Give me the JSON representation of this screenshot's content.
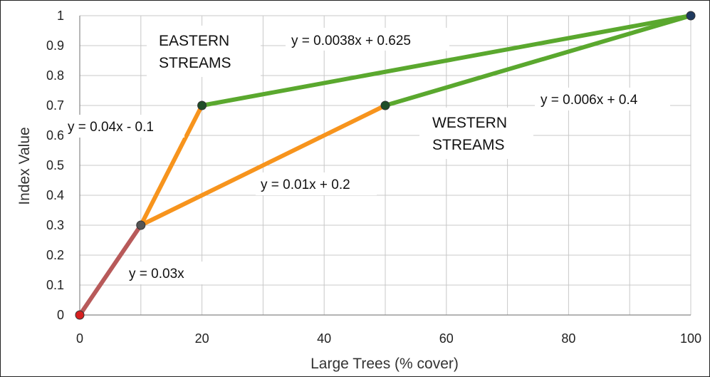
{
  "chart_data": {
    "type": "line",
    "xlabel": "Large Trees (% cover)",
    "ylabel": "Index Value",
    "xlim": [
      0,
      100
    ],
    "ylim": [
      0,
      1
    ],
    "xticks": [
      0,
      20,
      40,
      60,
      80,
      100
    ],
    "yticks": [
      0,
      0.1,
      0.2,
      0.3,
      0.4,
      0.5,
      0.6,
      0.7,
      0.8,
      0.9,
      1
    ],
    "grid": true,
    "segments": [
      {
        "points": [
          [
            0,
            0
          ],
          [
            10,
            0.3
          ]
        ],
        "color": "#b85a5a"
      },
      {
        "points": [
          [
            10,
            0.3
          ],
          [
            20,
            0.7
          ]
        ],
        "color": "#f7941d"
      },
      {
        "points": [
          [
            10,
            0.3
          ],
          [
            50,
            0.7
          ]
        ],
        "color": "#f7941d"
      },
      {
        "points": [
          [
            20,
            0.7
          ],
          [
            100,
            1
          ]
        ],
        "color": "#5aa82e"
      },
      {
        "points": [
          [
            50,
            0.7
          ],
          [
            100,
            1
          ]
        ],
        "color": "#5aa82e"
      }
    ],
    "points": [
      {
        "x": 0,
        "y": 0,
        "color": "#d62020"
      },
      {
        "x": 10,
        "y": 0.3,
        "color": "#555555"
      },
      {
        "x": 20,
        "y": 0.7,
        "color": "#1f4e28"
      },
      {
        "x": 50,
        "y": 0.7,
        "color": "#1f4e28"
      },
      {
        "x": 100,
        "y": 1,
        "color": "#1f3a5f"
      }
    ],
    "annotations": [
      {
        "id": "eq-0-03x",
        "text": "y = 0.03x"
      },
      {
        "id": "eq-0-04x",
        "text": "y = 0.04x - 0.1"
      },
      {
        "id": "eq-0-01x",
        "text": "y = 0.01x + 0.2"
      },
      {
        "id": "eq-0-0038x",
        "text": "y = 0.0038x + 0.625"
      },
      {
        "id": "eq-0-006x",
        "text": "y = 0.006x + 0.4"
      }
    ],
    "regions": [
      {
        "id": "eastern",
        "lines": [
          "EASTERN",
          "STREAMS"
        ]
      },
      {
        "id": "western",
        "lines": [
          "WESTERN",
          "STREAMS"
        ]
      }
    ]
  }
}
